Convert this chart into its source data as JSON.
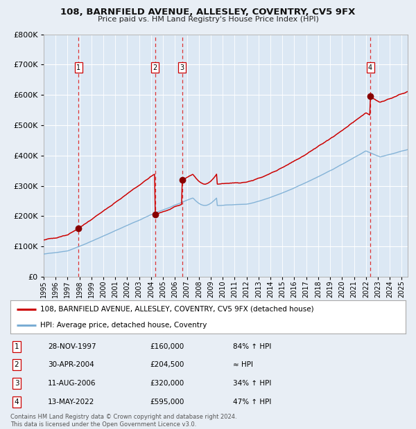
{
  "title_line1": "108, BARNFIELD AVENUE, ALLESLEY, COVENTRY, CV5 9FX",
  "title_line2": "Price paid vs. HM Land Registry's House Price Index (HPI)",
  "bg_color": "#e8eef5",
  "plot_bg_color": "#dce8f4",
  "red_line_color": "#cc0000",
  "blue_line_color": "#7aadd4",
  "sale_marker_color": "#880000",
  "dashed_line_color": "#dd3333",
  "purchases": [
    {
      "label": "1",
      "date_num": 1997.91,
      "price": 160000
    },
    {
      "label": "2",
      "date_num": 2004.33,
      "price": 204500
    },
    {
      "label": "3",
      "date_num": 2006.61,
      "price": 320000
    },
    {
      "label": "4",
      "date_num": 2022.37,
      "price": 595000
    }
  ],
  "legend_red": "108, BARNFIELD AVENUE, ALLESLEY, COVENTRY, CV5 9FX (detached house)",
  "legend_blue": "HPI: Average price, detached house, Coventry",
  "table_rows": [
    [
      "1",
      "28-NOV-1997",
      "£160,000",
      "84% ↑ HPI"
    ],
    [
      "2",
      "30-APR-2004",
      "£204,500",
      "≈ HPI"
    ],
    [
      "3",
      "11-AUG-2006",
      "£320,000",
      "34% ↑ HPI"
    ],
    [
      "4",
      "13-MAY-2022",
      "£595,000",
      "47% ↑ HPI"
    ]
  ],
  "footnote": "Contains HM Land Registry data © Crown copyright and database right 2024.\nThis data is licensed under the Open Government Licence v3.0.",
  "ylim": [
    0,
    800000
  ],
  "yticks": [
    0,
    100000,
    200000,
    300000,
    400000,
    500000,
    600000,
    700000,
    800000
  ],
  "xlim_start": 1995.0,
  "xlim_end": 2025.5
}
